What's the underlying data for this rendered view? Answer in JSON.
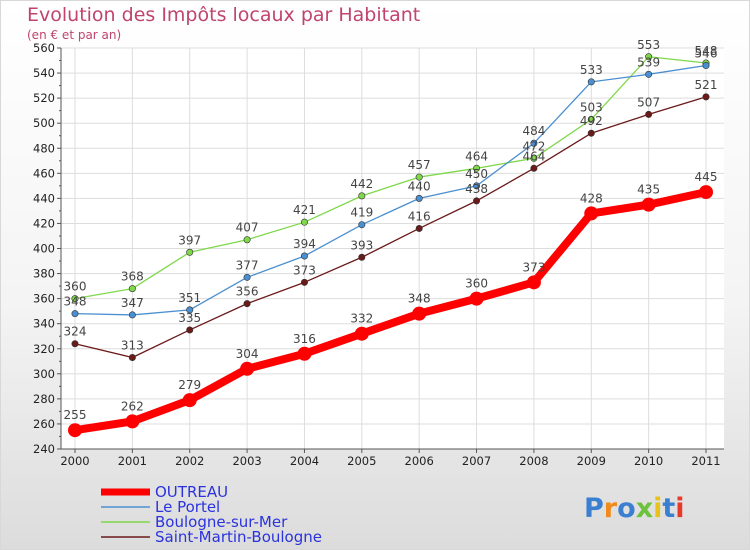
{
  "chart_data": {
    "type": "line",
    "title": "Evolution des Impôts locaux par Habitant",
    "subtitle": "(en € et par an)",
    "xlabel": "",
    "ylabel": "",
    "x": [
      "2000",
      "2001",
      "2002",
      "2003",
      "2004",
      "2005",
      "2006",
      "2007",
      "2008",
      "2009",
      "2010",
      "2011"
    ],
    "ylim": [
      240,
      560
    ],
    "yticks": [
      240,
      260,
      280,
      300,
      320,
      340,
      360,
      380,
      400,
      420,
      440,
      460,
      480,
      500,
      520,
      540,
      560
    ],
    "grid": true,
    "legend_position": "bottom-left",
    "series": [
      {
        "name": "OUTREAU",
        "color": "#ff0000",
        "values": [
          255,
          262,
          279,
          304,
          316,
          332,
          348,
          360,
          373,
          428,
          435,
          445
        ]
      },
      {
        "name": "Le Portel",
        "color": "#4a8fd0",
        "values": [
          348,
          347,
          351,
          377,
          394,
          419,
          440,
          450,
          484,
          533,
          539,
          546
        ]
      },
      {
        "name": "Boulogne-sur-Mer",
        "color": "#7fd84a",
        "values": [
          360,
          368,
          397,
          407,
          421,
          442,
          457,
          464,
          472,
          503,
          553,
          548
        ]
      },
      {
        "name": "Saint-Martin-Boulogne",
        "color": "#6b1a1a",
        "values": [
          324,
          313,
          335,
          356,
          373,
          393,
          416,
          438,
          464,
          492,
          507,
          521
        ]
      }
    ]
  },
  "brand": {
    "logo_text": "Proxiti"
  }
}
